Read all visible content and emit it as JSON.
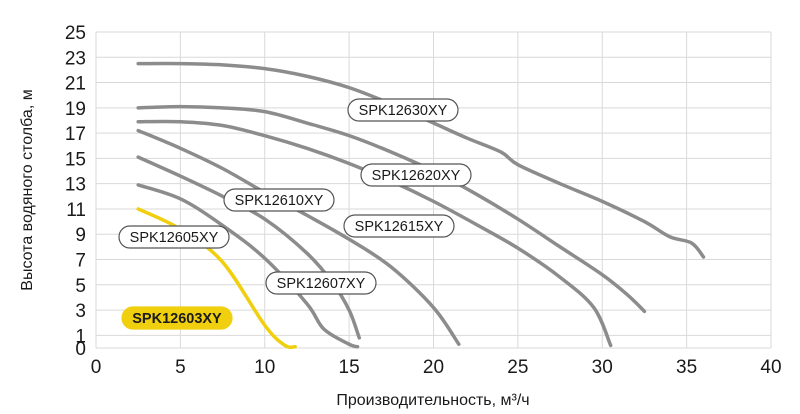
{
  "chart_data": {
    "type": "line",
    "title": "",
    "xlabel": "Производительность, м³/ч",
    "ylabel": "Высота водяного столба, м",
    "xlim": [
      0,
      40
    ],
    "ylim": [
      0,
      25
    ],
    "xticks": [
      0,
      5,
      10,
      15,
      20,
      25,
      30,
      35,
      40
    ],
    "yticks": [
      0,
      1,
      3,
      5,
      7,
      9,
      11,
      13,
      15,
      17,
      19,
      21,
      23,
      25
    ],
    "grid": true,
    "colors": {
      "curve": "#8c8c8c",
      "highlight": "#f0cf0f",
      "grid": "#d9d9d9",
      "label_border": "#555555"
    },
    "series": [
      {
        "name": "SPK12630XY",
        "x": [
          2.5,
          5,
          7.5,
          10,
          12.5,
          15,
          17.5,
          20,
          22,
          24,
          25,
          27.5,
          30,
          32.5,
          34,
          35.3,
          36
        ],
        "y": [
          22.5,
          22.5,
          22.4,
          22.1,
          21.5,
          20.6,
          19.3,
          17.8,
          16.6,
          15.5,
          14.5,
          13.0,
          11.6,
          10.0,
          8.8,
          8.3,
          7.2
        ]
      },
      {
        "name": "SPK12620XY",
        "x": [
          2.5,
          5,
          7.5,
          10,
          12.5,
          15,
          17.5,
          20,
          22.5,
          25,
          27.5,
          30,
          31.5,
          32.5
        ],
        "y": [
          19.0,
          19.1,
          19.0,
          18.7,
          17.8,
          16.8,
          15.5,
          14.0,
          12.2,
          10.2,
          8.0,
          5.8,
          4.2,
          2.9
        ]
      },
      {
        "name": "SPK12615XY",
        "x": [
          2.5,
          5,
          7.5,
          10,
          12.5,
          15,
          17.5,
          20,
          22.5,
          25,
          27.5,
          29.5,
          30.5
        ],
        "y": [
          17.9,
          17.9,
          17.6,
          16.8,
          15.8,
          14.6,
          13.2,
          11.6,
          9.8,
          7.9,
          5.6,
          3.2,
          0.2
        ]
      },
      {
        "name": "SPK12610XY",
        "x": [
          2.5,
          5,
          7.5,
          10,
          12.5,
          15,
          17.5,
          20,
          21.5
        ],
        "y": [
          17.2,
          15.8,
          14.2,
          12.3,
          10.5,
          8.6,
          6.4,
          3.2,
          0.3
        ]
      },
      {
        "name": "SPK12607XY",
        "x": [
          2.5,
          5,
          7.5,
          10,
          12.5,
          14,
          15,
          15.6
        ],
        "y": [
          15.1,
          13.6,
          12.0,
          10.2,
          7.5,
          5.2,
          3.0,
          0.8
        ]
      },
      {
        "name": "SPK12605XY",
        "x": [
          2.5,
          5,
          7.5,
          10,
          12.5,
          13.5,
          15,
          15.5
        ],
        "y": [
          12.9,
          11.8,
          9.7,
          7.1,
          3.5,
          1.5,
          0.3,
          0.1
        ]
      },
      {
        "name": "SPK12603XY",
        "highlight": true,
        "x": [
          2.5,
          5,
          7.5,
          10,
          11.2,
          11.8
        ],
        "y": [
          11.0,
          9.4,
          6.8,
          1.8,
          0.2,
          0.1
        ]
      }
    ]
  }
}
